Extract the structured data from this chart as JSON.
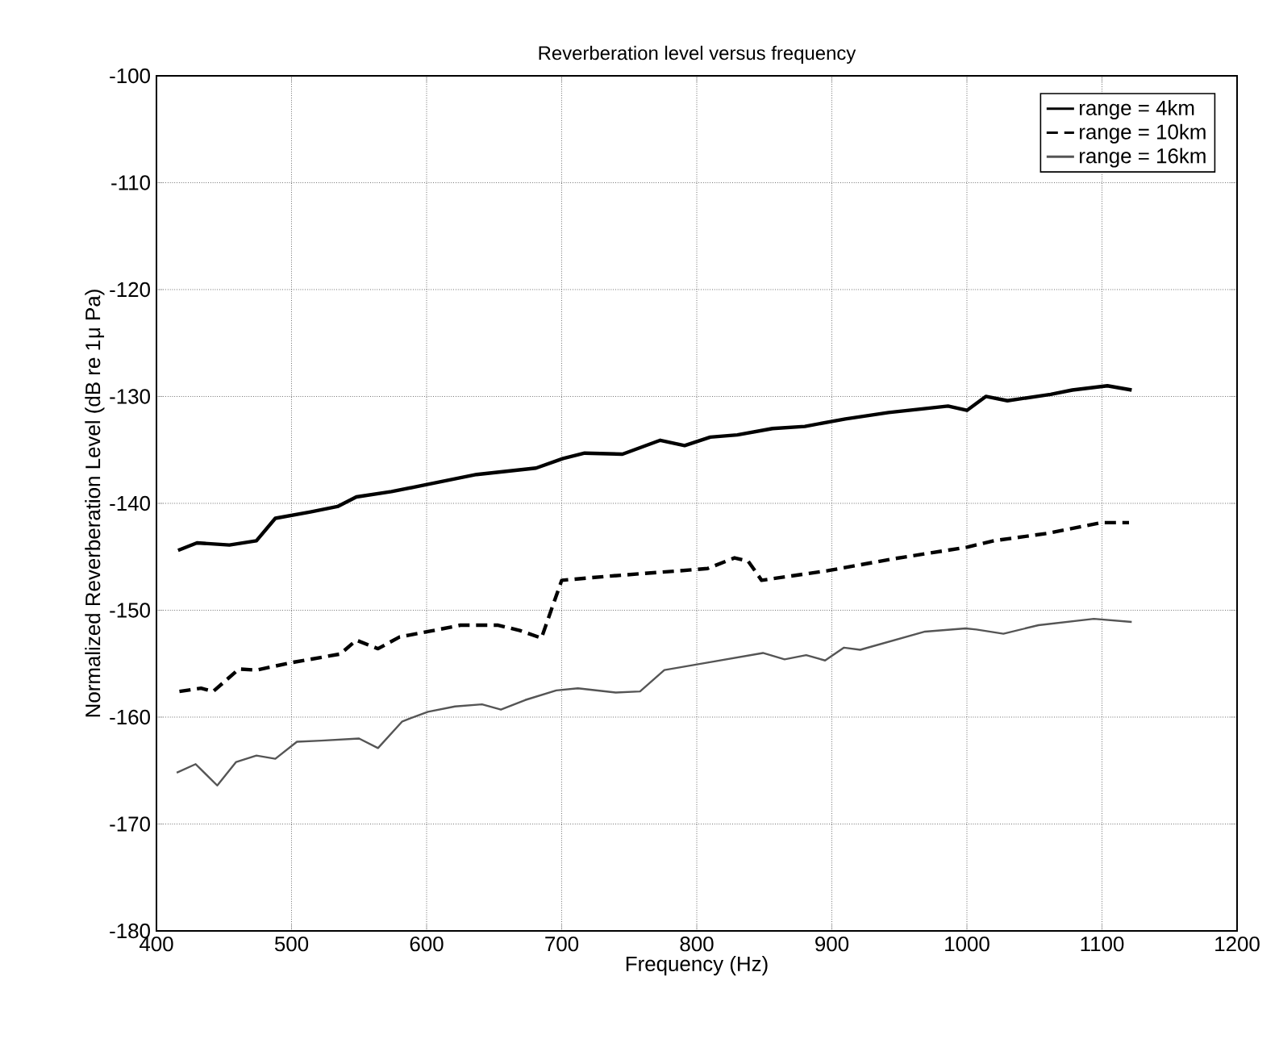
{
  "chart_data": {
    "type": "line",
    "title": "Reverberation level versus frequency",
    "xlabel": "Frequency (Hz)",
    "ylabel": "Normalized Reverberation Level (dB re 1$_{}$μ Pa)",
    "xlim": [
      400,
      1200
    ],
    "xticks": [
      400,
      500,
      600,
      700,
      800,
      900,
      1000,
      1100,
      1200
    ],
    "ylim": [
      -180,
      -100
    ],
    "yticks": [
      -180,
      -170,
      -160,
      -150,
      -140,
      -130,
      -120,
      -110,
      -100
    ],
    "grid": true,
    "legend": "top right",
    "marker": "none",
    "series": [
      {
        "name": "range = 4km",
        "color": "#000000",
        "line_style": "solid",
        "x": [
          416,
          430,
          454,
          474,
          488,
          514,
          534,
          548,
          574,
          598,
          637,
          681,
          701,
          717,
          745,
          773,
          791,
          810,
          830,
          856,
          880,
          910,
          942,
          986,
          1000,
          1014,
          1030,
          1062,
          1078,
          1104,
          1122
        ],
        "values": [
          -144.4,
          -143.7,
          -143.9,
          -143.5,
          -141.4,
          -140.8,
          -140.3,
          -139.4,
          -138.9,
          -138.3,
          -137.3,
          -136.7,
          -135.8,
          -135.3,
          -135.4,
          -134.1,
          -134.6,
          -133.8,
          -133.6,
          -133,
          -132.8,
          -132.1,
          -131.5,
          -130.9,
          -131.3,
          -130,
          -130.4,
          -129.8,
          -129.4,
          -129,
          -129.4
        ]
      },
      {
        "name": "range = 10km",
        "color": "#000000",
        "line_style": "dashed",
        "x": [
          417,
          433,
          442,
          461,
          474,
          500,
          536,
          548,
          564,
          580,
          601,
          625,
          653,
          669,
          685,
          700,
          736,
          788,
          808,
          828,
          838,
          848,
          897,
          945,
          1000,
          1020,
          1060,
          1100,
          1120
        ],
        "values": [
          -157.6,
          -157.3,
          -157.6,
          -155.5,
          -155.6,
          -154.9,
          -154.1,
          -152.8,
          -153.6,
          -152.5,
          -152,
          -151.4,
          -151.4,
          -151.9,
          -152.6,
          -147.2,
          -146.8,
          -146.3,
          -146.1,
          -145.1,
          -145.4,
          -147.2,
          -146.3,
          -145.2,
          -144.1,
          -143.5,
          -142.8,
          -141.8,
          -141.8
        ]
      },
      {
        "name": "range = 16km",
        "color": "#555555",
        "line_style": "solid",
        "x": [
          415,
          429,
          445,
          459,
          474,
          488,
          504,
          522,
          550,
          564,
          582,
          601,
          621,
          641,
          655,
          673,
          696,
          712,
          740,
          758,
          776,
          808,
          849,
          865,
          881,
          895,
          909,
          921,
          969,
          999,
          1007,
          1027,
          1053,
          1094,
          1122
        ],
        "values": [
          -165.2,
          -164.4,
          -166.4,
          -164.2,
          -163.6,
          -163.9,
          -162.3,
          -162.2,
          -162,
          -162.9,
          -160.4,
          -159.5,
          -159,
          -158.8,
          -159.3,
          -158.4,
          -157.5,
          -157.3,
          -157.7,
          -157.6,
          -155.6,
          -154.9,
          -154,
          -154.6,
          -154.2,
          -154.7,
          -153.5,
          -153.7,
          -152,
          -151.7,
          -151.8,
          -152.2,
          -151.4,
          -150.8,
          -151.1
        ]
      }
    ]
  }
}
